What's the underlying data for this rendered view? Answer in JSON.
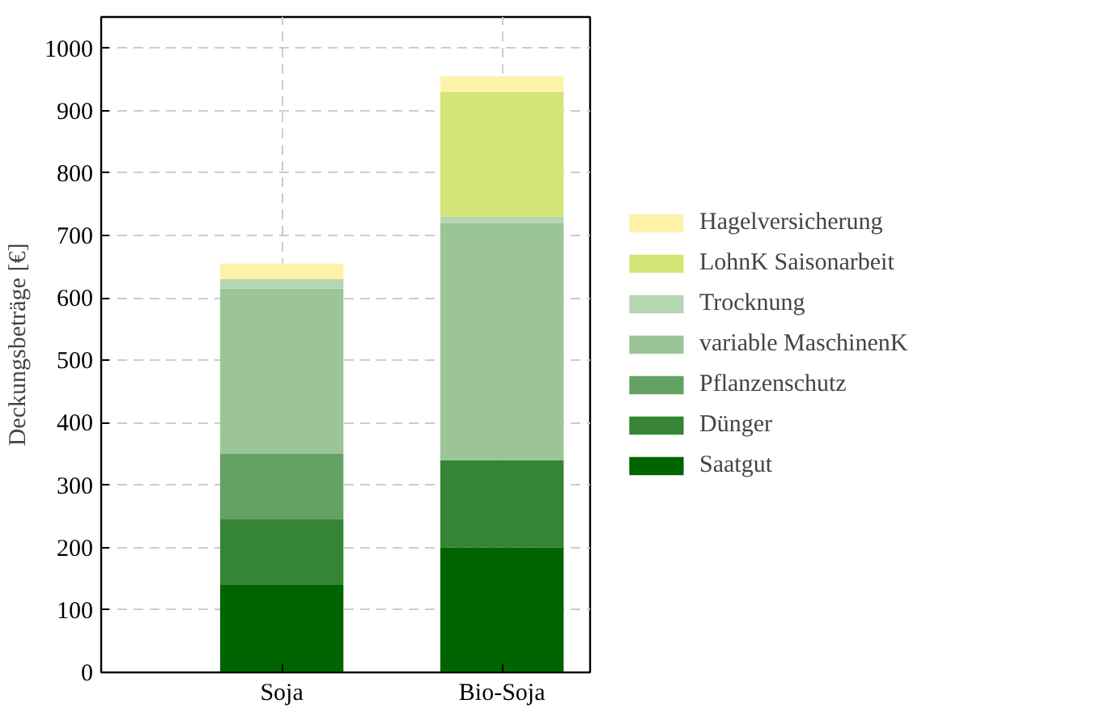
{
  "chart_data": {
    "type": "bar",
    "stacked": true,
    "ylabel": "Deckungsbeträge [€]",
    "categories": [
      "Soja",
      "Bio-Soja"
    ],
    "series": [
      {
        "name": "Saatgut",
        "color": "#006400",
        "values": [
          140,
          200
        ]
      },
      {
        "name": "Dünger",
        "color": "#358535",
        "values": [
          105,
          140
        ]
      },
      {
        "name": "Pflanzenschutz",
        "color": "#64a264",
        "values": [
          105,
          0
        ]
      },
      {
        "name": "variable MaschinenK",
        "color": "#9bc596",
        "values": [
          265,
          380
        ]
      },
      {
        "name": "Trocknung",
        "color": "#b5d6b2",
        "values": [
          15,
          10
        ]
      },
      {
        "name": "LohnK Saisonarbeit",
        "color": "#d4e577",
        "values": [
          0,
          200
        ]
      },
      {
        "name": "Hagelversicherung",
        "color": "#fdf2aa",
        "values": [
          25,
          25
        ]
      }
    ],
    "ylim": [
      0,
      1050
    ],
    "yticks": [
      0,
      100,
      200,
      300,
      400,
      500,
      600,
      700,
      800,
      900,
      1000
    ],
    "grid": true,
    "legend": "right"
  }
}
